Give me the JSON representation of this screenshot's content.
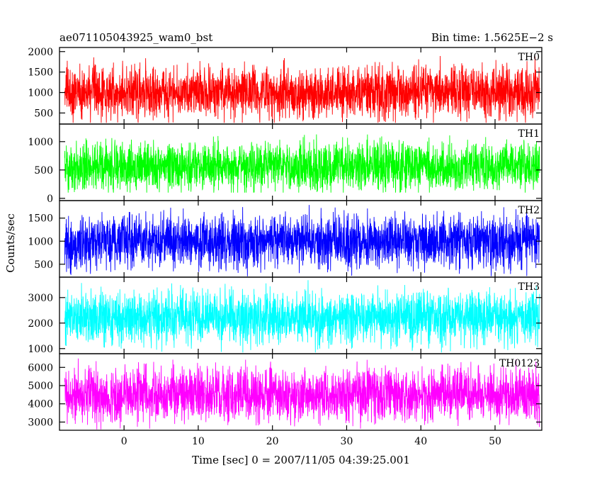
{
  "header": {
    "left_title": "ae071105043925_wam0_bst",
    "right_title": "Bin time: 1.5625E−2 s"
  },
  "chart_data": {
    "type": "line",
    "xlabel": "Time [sec] 0 = 2007/11/05 04:39:25.001",
    "ylabel": "Counts/sec",
    "xlim": [
      -8.7,
      56.3
    ],
    "data_x_range": [
      -8.0,
      56.0
    ],
    "x_ticks": [
      0,
      10,
      20,
      30,
      40,
      50
    ],
    "x_tick_labels": [
      "0",
      "10",
      "20",
      "30",
      "40",
      "50"
    ],
    "grid": false,
    "series": [
      {
        "name": "TH0",
        "color": "#ff0000",
        "ylim": [
          230,
          2100
        ],
        "y_ticks": [
          500,
          1000,
          1500,
          2000
        ],
        "y_tick_labels": [
          "500",
          "1000",
          "1500",
          "2000"
        ],
        "mean": 1000,
        "noise_min": 260,
        "noise_max": 2050
      },
      {
        "name": "TH1",
        "color": "#00ff00",
        "ylim": [
          -40,
          1310
        ],
        "y_ticks": [
          0,
          500,
          1000
        ],
        "y_tick_labels": [
          "0",
          "500",
          "1000"
        ],
        "mean": 560,
        "noise_min": 100,
        "noise_max": 1300
      },
      {
        "name": "TH2",
        "color": "#0000ff",
        "ylim": [
          220,
          1880
        ],
        "y_ticks": [
          500,
          1000,
          1500
        ],
        "y_tick_labels": [
          "500",
          "1000",
          "1500"
        ],
        "mean": 1000,
        "noise_min": 240,
        "noise_max": 1870
      },
      {
        "name": "TH3",
        "color": "#00ffff",
        "ylim": [
          800,
          3800
        ],
        "y_ticks": [
          1000,
          2000,
          3000
        ],
        "y_tick_labels": [
          "1000",
          "2000",
          "3000"
        ],
        "mean": 2200,
        "noise_min": 850,
        "noise_max": 3750
      },
      {
        "name": "TH0123",
        "color": "#ff00ff",
        "ylim": [
          2550,
          6750
        ],
        "y_ticks": [
          3000,
          4000,
          5000,
          6000
        ],
        "y_tick_labels": [
          "3000",
          "4000",
          "5000",
          "6000"
        ],
        "mean": 4500,
        "noise_min": 2600,
        "noise_max": 6700
      }
    ]
  }
}
